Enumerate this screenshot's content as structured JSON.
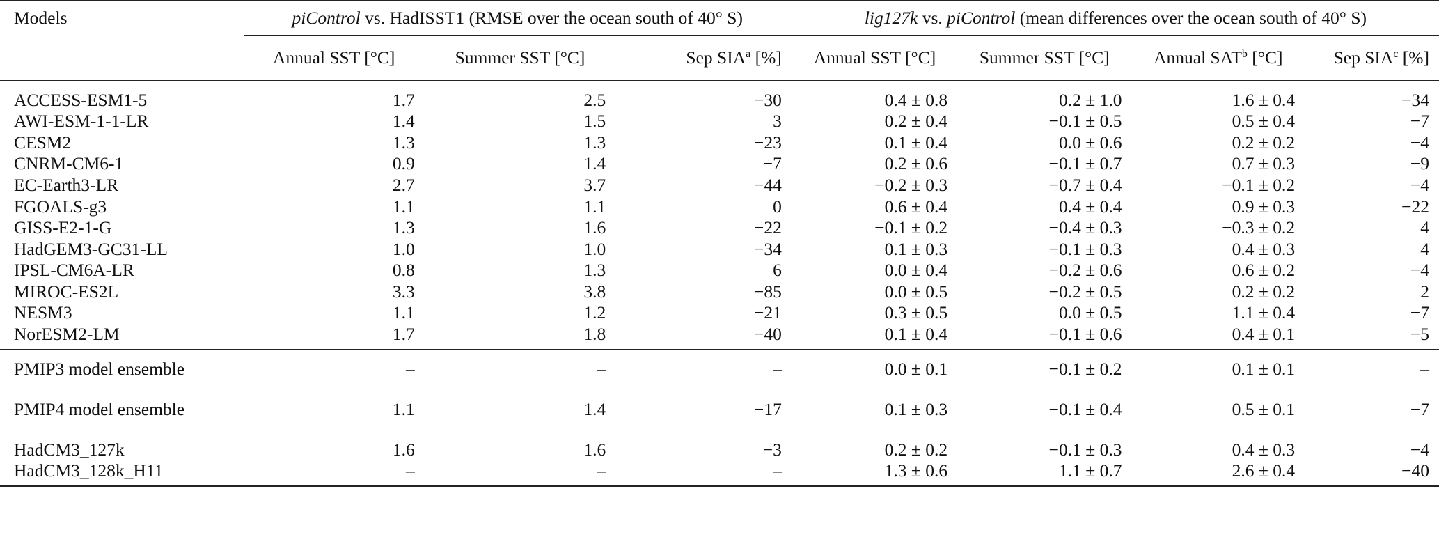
{
  "header": {
    "models_label": "Models",
    "group1": {
      "model1": "piControl",
      "vs": " vs. HadISST1 (RMSE over the ocean south of 40° S)"
    },
    "group2": {
      "model1": "lig127k",
      "vs": " vs. ",
      "model2": "piControl",
      "rest": " (mean differences over the ocean south of 40° S)"
    },
    "columns": [
      {
        "label": "Annual SST [°C]"
      },
      {
        "label": "Summer SST [°C]"
      },
      {
        "label": "Sep SIA",
        "sup": "a",
        "unit": " [%]"
      },
      {
        "label": "Annual SST [°C]"
      },
      {
        "label": "Summer SST [°C]"
      },
      {
        "label": "Annual SAT",
        "sup": "b",
        "unit": " [°C]"
      },
      {
        "label": "Sep SIA",
        "sup": "c",
        "unit": " [%]"
      }
    ]
  },
  "rows": [
    {
      "name": "ACCESS-ESM1-5",
      "v": [
        "1.7",
        "2.5",
        "−30",
        "0.4 ± 0.8",
        "0.2 ± 1.0",
        "1.6 ± 0.4",
        "−34"
      ]
    },
    {
      "name": "AWI-ESM-1-1-LR",
      "v": [
        "1.4",
        "1.5",
        "3",
        "0.2 ± 0.4",
        "−0.1 ± 0.5",
        "0.5 ± 0.4",
        "−7"
      ]
    },
    {
      "name": "CESM2",
      "v": [
        "1.3",
        "1.3",
        "−23",
        "0.1 ± 0.4",
        "0.0 ± 0.6",
        "0.2 ± 0.2",
        "−4"
      ]
    },
    {
      "name": "CNRM-CM6-1",
      "v": [
        "0.9",
        "1.4",
        "−7",
        "0.2 ± 0.6",
        "−0.1 ±  0.7",
        "0.7 ± 0.3",
        "−9"
      ]
    },
    {
      "name": "EC-Earth3-LR",
      "v": [
        "2.7",
        "3.7",
        "−44",
        "−0.2 ± 0.3",
        "−0.7 ± 0.4",
        "−0.1 ± 0.2",
        "−4"
      ]
    },
    {
      "name": "FGOALS-g3",
      "v": [
        "1.1",
        "1.1",
        "0",
        "0.6 ± 0.4",
        "0.4 ± 0.4",
        "0.9 ± 0.3",
        "−22"
      ]
    },
    {
      "name": "GISS-E2-1-G",
      "v": [
        "1.3",
        "1.6",
        "−22",
        "−0.1 ± 0.2",
        "−0.4 ± 0.3",
        "−0.3 ± 0.2",
        "4"
      ]
    },
    {
      "name": "HadGEM3-GC31-LL",
      "v": [
        "1.0",
        "1.0",
        "−34",
        "0.1 ± 0.3",
        "−0.1 ±  0.3",
        "0.4 ± 0.3",
        "4"
      ]
    },
    {
      "name": "IPSL-CM6A-LR",
      "v": [
        "0.8",
        "1.3",
        "6",
        "0.0 ± 0.4",
        "−0.2 ±  0.6",
        "0.6 ± 0.2",
        "−4"
      ]
    },
    {
      "name": "MIROC-ES2L",
      "v": [
        "3.3",
        "3.8",
        "−85",
        "0.0 ± 0.5",
        "−0.2 ±  0.5",
        "0.2 ± 0.2",
        "2"
      ]
    },
    {
      "name": "NESM3",
      "v": [
        "1.1",
        "1.2",
        "−21",
        "0.3 ± 0.5",
        "0.0 ± 0.5",
        "1.1 ± 0.4",
        "−7"
      ]
    },
    {
      "name": "NorESM2-LM",
      "v": [
        "1.7",
        "1.8",
        "−40",
        "0.1 ± 0.4",
        "−0.1 ±  0.6",
        "0.4 ± 0.1",
        "−5"
      ]
    }
  ],
  "ensembles": [
    {
      "name": "PMIP3 model ensemble",
      "v": [
        "–",
        "–",
        "–",
        "0.0 ± 0.1",
        "−0.1 ± 0.2",
        "0.1 ± 0.1",
        "–"
      ]
    },
    {
      "name": "PMIP4 model ensemble",
      "v": [
        "1.1",
        "1.4",
        "−17",
        "0.1 ± 0.3",
        "−0.1 ± 0.4",
        "0.5 ± 0.1",
        "−7"
      ]
    }
  ],
  "hadcm3": [
    {
      "name": "HadCM3_127k",
      "v": [
        "1.6",
        "1.6",
        "−3",
        "0.2 ± 0.2",
        "−0.1 ± 0.3",
        "0.4 ± 0.3",
        "−4"
      ]
    },
    {
      "name": "HadCM3_128k_H11",
      "v": [
        "–",
        "–",
        "–",
        "1.3 ± 0.6",
        "1.1 ±  0.7",
        "2.6 ± 0.4",
        "−40"
      ]
    }
  ]
}
